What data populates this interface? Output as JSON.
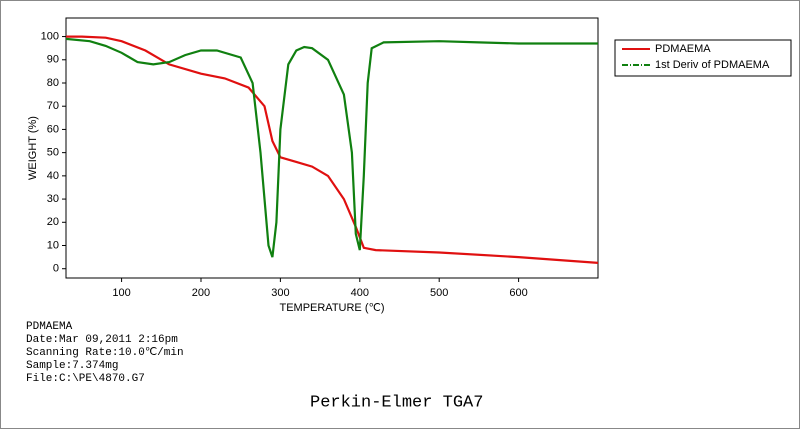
{
  "chart_data": {
    "type": "line",
    "xlabel": "TEMPERATURE (℃)",
    "ylabel": "WEIGHT (%)",
    "xlim": [
      30,
      700
    ],
    "ylim": [
      -4,
      108
    ],
    "xticks": [
      100,
      200,
      300,
      400,
      500,
      600
    ],
    "yticks": [
      0,
      10,
      20,
      30,
      40,
      50,
      60,
      70,
      80,
      90,
      100
    ],
    "series": [
      {
        "name": "PDMAEMA",
        "color": "#e01010",
        "linestyle": "solid",
        "x": [
          30,
          50,
          80,
          100,
          130,
          160,
          200,
          230,
          260,
          280,
          290,
          300,
          320,
          340,
          360,
          380,
          395,
          405,
          420,
          500,
          600,
          700
        ],
        "values": [
          100,
          100,
          99.5,
          98,
          94,
          88,
          84,
          82,
          78,
          70,
          55,
          48,
          46,
          44,
          40,
          30,
          18,
          9,
          8,
          7,
          5,
          2.5
        ]
      },
      {
        "name": "1st Deriv of PDMAEMA",
        "color": "#108010",
        "linestyle": "dash-dot",
        "x": [
          30,
          60,
          80,
          100,
          120,
          140,
          160,
          180,
          200,
          220,
          250,
          265,
          275,
          285,
          290,
          295,
          300,
          310,
          320,
          330,
          340,
          360,
          380,
          390,
          395,
          400,
          405,
          410,
          415,
          430,
          500,
          550,
          600,
          700
        ],
        "values": [
          99,
          98,
          96,
          93,
          89,
          88,
          89,
          92,
          94,
          94,
          91,
          80,
          50,
          10,
          5,
          20,
          60,
          88,
          94,
          95.5,
          95,
          90,
          75,
          50,
          15,
          8,
          40,
          80,
          95,
          97.5,
          98,
          97.5,
          97,
          97
        ]
      }
    ]
  },
  "notes": [
    "PDMAEMA",
    "Date:Mar 09,2011  2:16pm",
    "Scanning Rate:10.0℃/min",
    "Sample:7.374mg",
    "File:C:\\PE\\4870.G7"
  ],
  "footer": "Perkin-Elmer TGA7"
}
